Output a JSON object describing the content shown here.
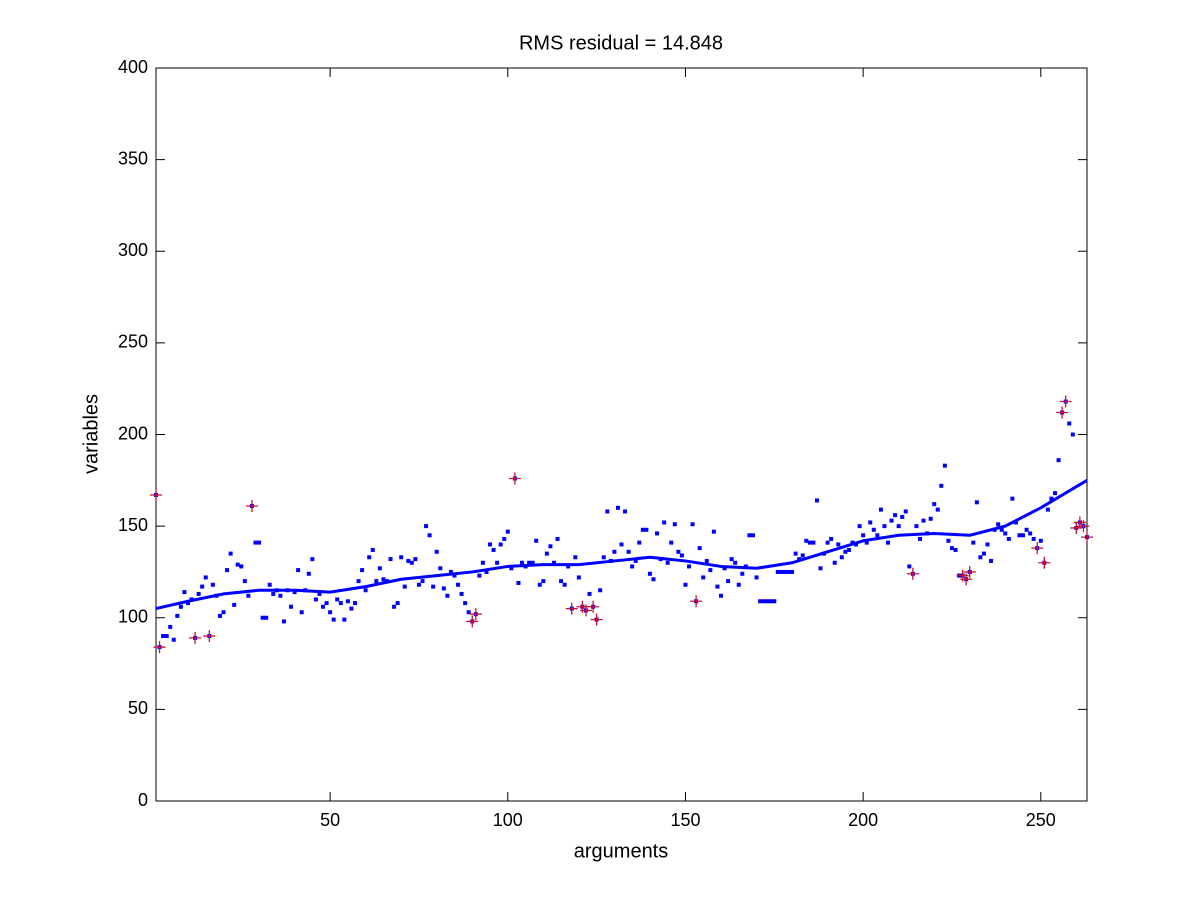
{
  "chart_data": {
    "type": "scatter",
    "title": "RMS residual = 14.848",
    "xlabel": "arguments",
    "ylabel": "variables",
    "xlim": [
      1,
      263
    ],
    "ylim": [
      0,
      400
    ],
    "xticks": [
      50,
      100,
      150,
      200,
      250
    ],
    "yticks": [
      0,
      50,
      100,
      150,
      200,
      250,
      300,
      350,
      400
    ],
    "series": [
      {
        "marker": "dot",
        "color": "#0000ff",
        "x": [
          1,
          2,
          3,
          4,
          5,
          6,
          7,
          8,
          9,
          10,
          11,
          12,
          13,
          14,
          15,
          16,
          17,
          18,
          19,
          20,
          21,
          22,
          23,
          24,
          25,
          26,
          27,
          28,
          29,
          30,
          31,
          32,
          33,
          34,
          35,
          36,
          37,
          38,
          39,
          40,
          41,
          42,
          43,
          44,
          45,
          46,
          47,
          48,
          49,
          50,
          51,
          52,
          53,
          54,
          55,
          56,
          57,
          58,
          59,
          60,
          61,
          62,
          63,
          64,
          65,
          66,
          67,
          68,
          69,
          70,
          71,
          72,
          73,
          74,
          75,
          76,
          77,
          78,
          79,
          80,
          81,
          82,
          83,
          84,
          85,
          86,
          87,
          88,
          89,
          90,
          91,
          92,
          93,
          94,
          95,
          96,
          97,
          98,
          99,
          100,
          101,
          102,
          103,
          104,
          105,
          106,
          107,
          108,
          109,
          110,
          111,
          112,
          113,
          114,
          115,
          116,
          117,
          118,
          119,
          120,
          121,
          122,
          123,
          124,
          125,
          126,
          127,
          128,
          129,
          130,
          131,
          132,
          133,
          134,
          135,
          136,
          137,
          138,
          139,
          140,
          141,
          142,
          143,
          144,
          145,
          146,
          147,
          148,
          149,
          150,
          151,
          152,
          153,
          154,
          155,
          156,
          157,
          158,
          159,
          160,
          161,
          162,
          163,
          164,
          165,
          166,
          167,
          168,
          169,
          170,
          171,
          172,
          173,
          174,
          175,
          176,
          177,
          178,
          179,
          180,
          181,
          182,
          183,
          184,
          185,
          186,
          187,
          188,
          189,
          190,
          191,
          192,
          193,
          194,
          195,
          196,
          197,
          198,
          199,
          200,
          201,
          202,
          203,
          204,
          205,
          206,
          207,
          208,
          209,
          210,
          211,
          212,
          213,
          214,
          215,
          216,
          217,
          218,
          219,
          220,
          221,
          222,
          223,
          224,
          225,
          226,
          227,
          228,
          229,
          230,
          231,
          232,
          233,
          234,
          235,
          236,
          237,
          238,
          239,
          240,
          241,
          242,
          243,
          244,
          245,
          246,
          247,
          248,
          249,
          250,
          251,
          252,
          253,
          254,
          255,
          256,
          257,
          258,
          259,
          260,
          261,
          262,
          263
        ],
        "values": [
          167,
          84,
          90,
          90,
          95,
          88,
          101,
          106,
          114,
          108,
          110,
          89,
          113,
          117,
          122,
          90,
          118,
          112,
          101,
          103,
          126,
          135,
          107,
          129,
          128,
          120,
          112,
          161,
          141,
          141,
          100,
          100,
          118,
          113,
          115,
          112,
          98,
          115,
          106,
          114,
          126,
          103,
          115,
          124,
          132,
          110,
          113,
          106,
          108,
          103,
          99,
          110,
          108,
          99,
          109,
          105,
          108,
          120,
          126,
          115,
          133,
          137,
          120,
          127,
          121,
          120,
          132,
          106,
          108,
          133,
          117,
          131,
          130,
          132,
          118,
          120,
          150,
          145,
          117,
          136,
          127,
          116,
          112,
          125,
          123,
          118,
          113,
          108,
          103,
          98,
          102,
          123,
          130,
          125,
          140,
          137,
          130,
          140,
          143,
          147,
          127,
          176,
          119,
          130,
          128,
          130,
          130,
          142,
          118,
          120,
          135,
          139,
          130,
          143,
          120,
          118,
          128,
          105,
          133,
          122,
          106,
          104,
          113,
          106,
          99,
          115,
          133,
          158,
          131,
          136,
          160,
          140,
          158,
          136,
          128,
          131,
          141,
          148,
          148,
          124,
          121,
          146,
          132,
          152,
          130,
          141,
          151,
          136,
          134,
          118,
          128,
          151,
          109,
          138,
          122,
          131,
          126,
          147,
          117,
          112,
          127,
          120,
          132,
          130,
          118,
          124,
          128,
          145,
          145,
          122,
          109,
          109,
          109,
          109,
          109,
          125,
          125,
          125,
          125,
          125,
          135,
          132,
          134,
          142,
          141,
          141,
          164,
          127,
          135,
          141,
          143,
          130,
          140,
          133,
          136,
          137,
          141,
          140,
          150,
          145,
          141,
          152,
          148,
          145,
          159,
          150,
          141,
          153,
          156,
          150,
          155,
          158,
          128,
          124,
          150,
          143,
          153,
          146,
          154,
          162,
          159,
          172,
          183,
          142,
          138,
          137,
          123,
          123,
          121,
          125,
          141,
          163,
          133,
          135,
          140,
          131,
          148,
          151,
          148,
          146,
          143,
          165,
          152,
          145,
          145,
          148,
          146,
          143,
          138,
          142,
          130,
          159,
          165,
          168,
          186,
          212,
          218,
          206,
          200,
          149,
          152,
          150,
          144
        ]
      },
      {
        "marker": "plus",
        "color": "#c8102e",
        "x": [
          1,
          2,
          12,
          16,
          28,
          90,
          91,
          102,
          118,
          121,
          122,
          124,
          125,
          153,
          214,
          228,
          229,
          230,
          249,
          251,
          256,
          257,
          260,
          261,
          262,
          263
        ],
        "values": [
          167,
          84,
          89,
          90,
          161,
          98,
          102,
          176,
          105,
          106,
          104,
          106,
          99,
          109,
          124,
          123,
          121,
          125,
          138,
          130,
          212,
          218,
          149,
          152,
          150,
          144
        ]
      },
      {
        "marker": "line",
        "color": "#0000ff",
        "x": [
          1,
          10,
          20,
          30,
          40,
          50,
          60,
          70,
          80,
          90,
          100,
          110,
          120,
          130,
          140,
          150,
          160,
          170,
          180,
          190,
          200,
          210,
          220,
          230,
          240,
          250,
          263
        ],
        "values": [
          105,
          109,
          113,
          115,
          115,
          114,
          117,
          121,
          123,
          125,
          128,
          129,
          129,
          131,
          133,
          131,
          128,
          127,
          130,
          136,
          142,
          145,
          146,
          145,
          150,
          160,
          175
        ]
      }
    ]
  }
}
